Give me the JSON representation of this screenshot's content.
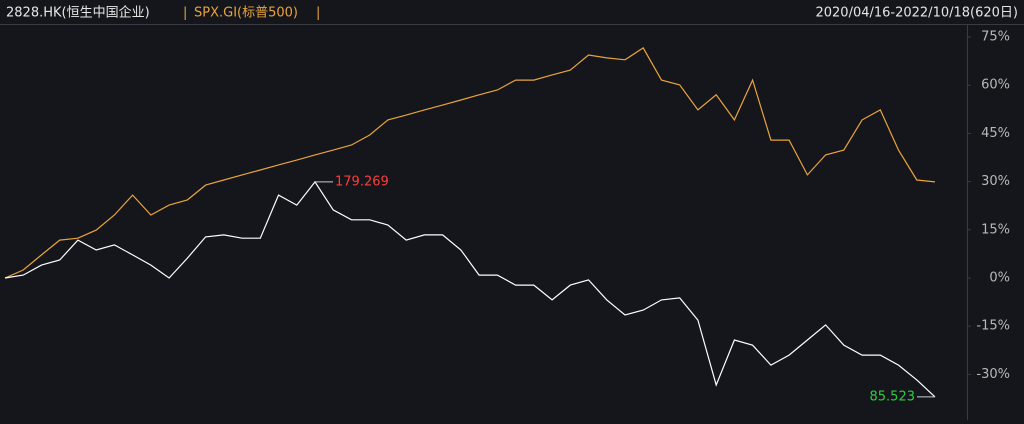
{
  "chart_data": {
    "type": "line",
    "title": "2828.HK(恒生中国企业)",
    "title_separator": "|",
    "subtitle": "SPX.GI(标普500)",
    "range_label": "2020/04/16-2022/10/18(620日)",
    "ylim": [
      -41.7,
      77.8
    ],
    "yticks": [
      {
        "value": 75,
        "label": "75%"
      },
      {
        "value": 60,
        "label": "60%"
      },
      {
        "value": 45,
        "label": "45%"
      },
      {
        "value": 30,
        "label": "30%"
      },
      {
        "value": 15,
        "label": "15%"
      },
      {
        "value": 0,
        "label": "0%"
      },
      {
        "value": -15,
        "label": "-15%"
      },
      {
        "value": -30,
        "label": "-30%"
      }
    ],
    "max_label": "179.269",
    "min_label": "85.523",
    "series": [
      {
        "name": "2828.HK",
        "color": "#ffffff",
        "values": [
          0,
          0.9,
          4.0,
          5.6,
          11.8,
          8.7,
          10.3,
          7.2,
          4.0,
          0,
          6.2,
          12.8,
          13.4,
          12.4,
          12.4,
          25.8,
          22.7,
          29.9,
          21.2,
          18.1,
          18.1,
          16.5,
          11.8,
          13.4,
          13.4,
          8.7,
          0.9,
          0.9,
          -2.2,
          -2.2,
          -6.8,
          -2.2,
          -0.6,
          -6.8,
          -11.5,
          -10.0,
          -6.8,
          -6.2,
          -13.1,
          -33.3,
          -19.3,
          -20.9,
          -27.1,
          -24.0,
          -19.3,
          -14.6,
          -20.9,
          -24.0,
          -24.0,
          -27.1,
          -31.7,
          -37.0
        ]
      },
      {
        "name": "SPX.GI",
        "color": "#e8a33d",
        "values": [
          0,
          2.5,
          7.2,
          11.8,
          12.4,
          14.9,
          19.6,
          25.8,
          19.6,
          22.7,
          24.3,
          28.9,
          30.5,
          32.1,
          33.6,
          35.2,
          36.7,
          38.3,
          39.8,
          41.4,
          44.5,
          49.2,
          50.7,
          52.3,
          53.8,
          55.4,
          57.0,
          58.5,
          61.6,
          61.6,
          63.2,
          64.7,
          69.4,
          68.5,
          67.9,
          71.6,
          61.6,
          60.1,
          52.3,
          57.0,
          49.2,
          61.6,
          42.9,
          42.9,
          32.1,
          38.3,
          39.8,
          49.2,
          52.3,
          39.8,
          30.5,
          29.9
        ]
      }
    ]
  }
}
